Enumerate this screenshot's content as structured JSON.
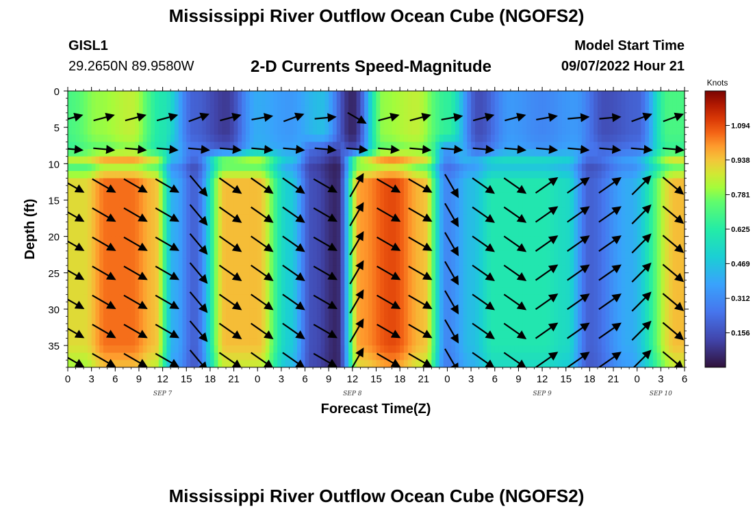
{
  "page": {
    "title": "Mississippi River Outflow Ocean Cube (NGOFS2)",
    "title_repeat": "Mississippi River Outflow Ocean Cube (NGOFS2)",
    "station_id": "GISL1",
    "station_coords": "29.2650N  89.9580W",
    "subtitle": "2-D Currents Speed-Magnitude",
    "model_start_label": "Model Start Time",
    "model_start_value": "09/07/2022 Hour 21"
  },
  "chart_data": {
    "type": "heatmap",
    "title": "2-D Currents Speed-Magnitude",
    "xlabel": "Forecast Time(Z)",
    "ylabel": "Depth (ft)",
    "colorbar_label": "Knots",
    "x_range_hours": [
      0,
      78
    ],
    "ylim": [
      38,
      0
    ],
    "yticks": [
      0,
      5,
      10,
      15,
      20,
      25,
      30,
      35
    ],
    "ytick_labels": [
      "0",
      "5",
      "10",
      "15",
      "20",
      "25",
      "30",
      "35"
    ],
    "xtick_hours": [
      0,
      3,
      6,
      9,
      12,
      15,
      18,
      21,
      24,
      27,
      30,
      33,
      36,
      39,
      42,
      45,
      48,
      51,
      54,
      57,
      60,
      63,
      66,
      69,
      72,
      75,
      78
    ],
    "xtick_labels": [
      "0",
      "3",
      "6",
      "9",
      "12",
      "15",
      "18",
      "21",
      "0",
      "3",
      "6",
      "9",
      "12",
      "15",
      "18",
      "21",
      "0",
      "3",
      "6",
      "9",
      "12",
      "15",
      "18",
      "21",
      "0",
      "3",
      "6"
    ],
    "date_labels": [
      {
        "hour": 12,
        "text": "SEP 7"
      },
      {
        "hour": 36,
        "text": "SEP 8"
      },
      {
        "hour": 60,
        "text": "SEP 9"
      },
      {
        "hour": 75,
        "text": "SEP 10"
      }
    ],
    "colorbar_ticks": [
      1.094,
      0.938,
      0.781,
      0.625,
      0.469,
      0.312,
      0.156
    ],
    "colorbar_range": [
      0,
      1.25
    ],
    "surface_layer": {
      "depth_range": [
        0,
        10
      ],
      "speeds": [
        0.7,
        0.8,
        0.85,
        0.6,
        0.2,
        0.1,
        0.4,
        0.35,
        0.45,
        0.05,
        0.8,
        0.85,
        0.65,
        0.15,
        0.35,
        0.3,
        0.35,
        0.15,
        0.2,
        0.7
      ]
    },
    "deep_layer": {
      "depth_range": [
        10,
        38
      ],
      "speeds": [
        0.9,
        1.05,
        1.05,
        0.95,
        0.4,
        0.2,
        0.95,
        0.95,
        0.5,
        0.15,
        0.05,
        1.0,
        1.1,
        0.95,
        0.3,
        0.45,
        0.6,
        0.6,
        0.6,
        0.55,
        0.2,
        0.4,
        0.95
      ],
      "hours": [
        2,
        5,
        8,
        11,
        13.5,
        16,
        20,
        24,
        28,
        31,
        34,
        37,
        41,
        45,
        48,
        51,
        54,
        57,
        60,
        63,
        66,
        71,
        77
      ]
    },
    "vectors": {
      "columns_hours": [
        0,
        4,
        8,
        12,
        16,
        20,
        24,
        28,
        32,
        36,
        40,
        44,
        48,
        52,
        56,
        60,
        64,
        68,
        72,
        76
      ],
      "surface_dirs_deg": [
        15,
        15,
        15,
        15,
        20,
        15,
        10,
        20,
        5,
        -30,
        15,
        15,
        10,
        15,
        15,
        10,
        5,
        5,
        20,
        20
      ],
      "rows_depth_ft": [
        3.7,
        8,
        13,
        17,
        21,
        25,
        29,
        33,
        37
      ],
      "deep_dirs_deg": [
        -30,
        -30,
        -30,
        -30,
        -50,
        -35,
        -35,
        -35,
        -30,
        60,
        -30,
        -30,
        -60,
        -35,
        -35,
        35,
        35,
        35,
        45,
        -40
      ]
    }
  }
}
